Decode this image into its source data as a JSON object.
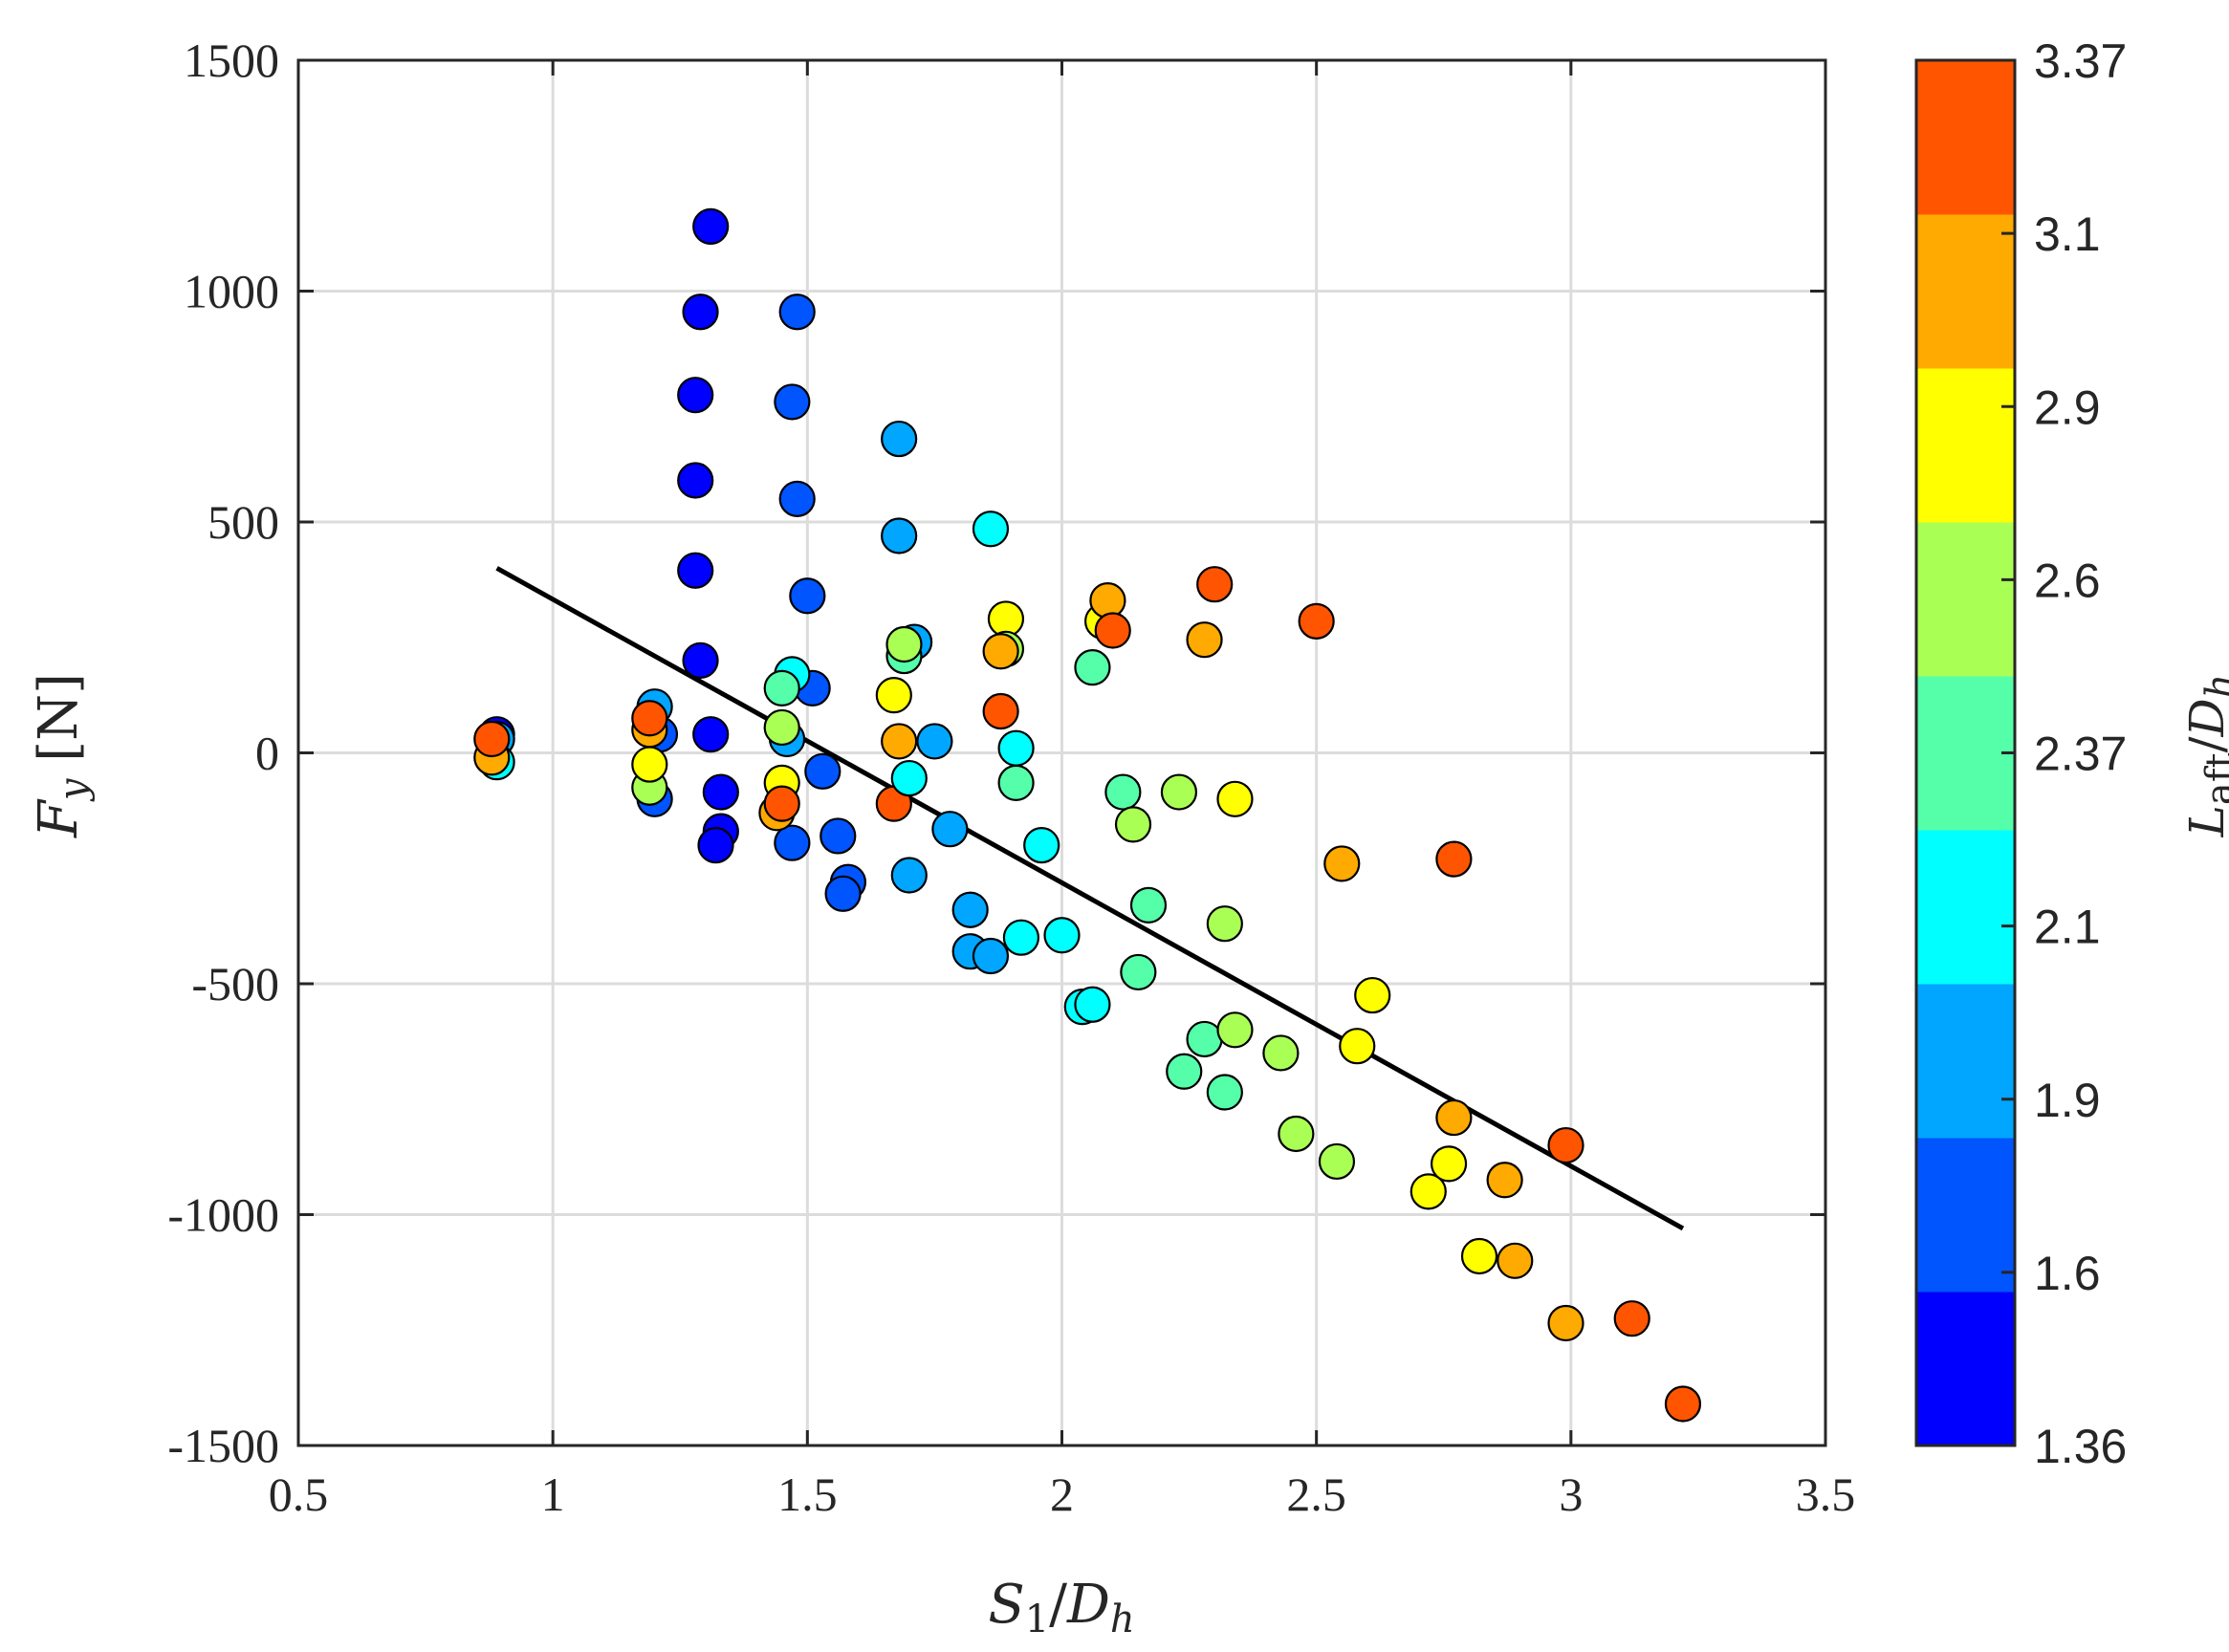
{
  "chart_data": {
    "type": "scatter",
    "title": "",
    "xlabel": "S1/Dh",
    "ylabel": "Fy [N]",
    "xlim": [
      0.5,
      3.5
    ],
    "ylim": [
      -1500,
      1500
    ],
    "x_ticks": [
      0.5,
      1,
      1.5,
      2,
      2.5,
      3,
      3.5
    ],
    "x_tick_labels": [
      "0.5",
      "1",
      "1.5",
      "2",
      "2.5",
      "3",
      "3.5"
    ],
    "y_ticks": [
      -1500,
      -1000,
      -500,
      0,
      500,
      1000,
      1500
    ],
    "y_tick_labels": [
      "-1500",
      "-1000",
      "-500",
      "0",
      "500",
      "1000",
      "1500"
    ],
    "grid": true,
    "colorbar": {
      "label": "Laft/Dh",
      "tick_labels": [
        "1.36",
        "1.6",
        "1.9",
        "2.1",
        "2.37",
        "2.6",
        "2.9",
        "3.1",
        "3.37"
      ],
      "colors": [
        "#0000ff",
        "#0055ff",
        "#00a6ff",
        "#00ffff",
        "#55ffaa",
        "#aaff55",
        "#ffff00",
        "#ffaa00",
        "#ff5500"
      ]
    },
    "fit_line": {
      "x": [
        0.89,
        3.22
      ],
      "y": [
        400,
        -1030
      ]
    },
    "points": [
      {
        "x": 0.89,
        "y": 40,
        "c": 1.36
      },
      {
        "x": 0.89,
        "y": 30,
        "c": 1.9
      },
      {
        "x": 0.89,
        "y": -20,
        "c": 2.1
      },
      {
        "x": 0.88,
        "y": -10,
        "c": 3.1
      },
      {
        "x": 0.88,
        "y": 30,
        "c": 3.37
      },
      {
        "x": 1.31,
        "y": 1140,
        "c": 1.36
      },
      {
        "x": 1.29,
        "y": 955,
        "c": 1.36
      },
      {
        "x": 1.28,
        "y": 775,
        "c": 1.36
      },
      {
        "x": 1.28,
        "y": 590,
        "c": 1.36
      },
      {
        "x": 1.28,
        "y": 395,
        "c": 1.36
      },
      {
        "x": 1.29,
        "y": 200,
        "c": 1.36
      },
      {
        "x": 1.31,
        "y": 40,
        "c": 1.36
      },
      {
        "x": 1.33,
        "y": -85,
        "c": 1.36
      },
      {
        "x": 1.33,
        "y": -170,
        "c": 1.36
      },
      {
        "x": 1.32,
        "y": -200,
        "c": 1.36
      },
      {
        "x": 1.2,
        "y": -100,
        "c": 1.6
      },
      {
        "x": 1.21,
        "y": 40,
        "c": 1.6
      },
      {
        "x": 1.2,
        "y": 100,
        "c": 1.9
      },
      {
        "x": 1.19,
        "y": -75,
        "c": 2.6
      },
      {
        "x": 1.19,
        "y": -25,
        "c": 2.9
      },
      {
        "x": 1.19,
        "y": 50,
        "c": 3.1
      },
      {
        "x": 1.19,
        "y": 75,
        "c": 3.37
      },
      {
        "x": 1.48,
        "y": 955,
        "c": 1.6
      },
      {
        "x": 1.47,
        "y": 760,
        "c": 1.6
      },
      {
        "x": 1.48,
        "y": 550,
        "c": 1.6
      },
      {
        "x": 1.5,
        "y": 340,
        "c": 1.6
      },
      {
        "x": 1.51,
        "y": 140,
        "c": 1.6
      },
      {
        "x": 1.53,
        "y": -40,
        "c": 1.6
      },
      {
        "x": 1.56,
        "y": -180,
        "c": 1.6
      },
      {
        "x": 1.47,
        "y": -195,
        "c": 1.6
      },
      {
        "x": 1.58,
        "y": -280,
        "c": 1.6
      },
      {
        "x": 1.57,
        "y": -305,
        "c": 1.6
      },
      {
        "x": 1.47,
        "y": 170,
        "c": 2.1
      },
      {
        "x": 1.46,
        "y": 30,
        "c": 1.9
      },
      {
        "x": 1.45,
        "y": 140,
        "c": 2.37
      },
      {
        "x": 1.45,
        "y": 55,
        "c": 2.6
      },
      {
        "x": 1.45,
        "y": -65,
        "c": 2.9
      },
      {
        "x": 1.44,
        "y": -130,
        "c": 3.1
      },
      {
        "x": 1.45,
        "y": -110,
        "c": 3.37
      },
      {
        "x": 1.68,
        "y": 680,
        "c": 1.9
      },
      {
        "x": 1.68,
        "y": 470,
        "c": 1.9
      },
      {
        "x": 1.71,
        "y": 240,
        "c": 1.9
      },
      {
        "x": 1.69,
        "y": 210,
        "c": 2.37
      },
      {
        "x": 1.69,
        "y": 235,
        "c": 2.6
      },
      {
        "x": 1.67,
        "y": 125,
        "c": 2.9
      },
      {
        "x": 1.68,
        "y": 25,
        "c": 3.1
      },
      {
        "x": 1.67,
        "y": -110,
        "c": 3.37
      },
      {
        "x": 1.75,
        "y": 25,
        "c": 1.9
      },
      {
        "x": 1.7,
        "y": -55,
        "c": 2.1
      },
      {
        "x": 1.7,
        "y": -265,
        "c": 1.9
      },
      {
        "x": 1.78,
        "y": -165,
        "c": 1.9
      },
      {
        "x": 1.82,
        "y": -340,
        "c": 1.9
      },
      {
        "x": 1.82,
        "y": -430,
        "c": 1.9
      },
      {
        "x": 1.86,
        "y": -440,
        "c": 1.9
      },
      {
        "x": 1.86,
        "y": 485,
        "c": 2.1
      },
      {
        "x": 1.89,
        "y": 290,
        "c": 2.9
      },
      {
        "x": 1.89,
        "y": 225,
        "c": 2.6
      },
      {
        "x": 1.88,
        "y": 220,
        "c": 3.1
      },
      {
        "x": 1.88,
        "y": 90,
        "c": 3.37
      },
      {
        "x": 1.91,
        "y": 10,
        "c": 2.1
      },
      {
        "x": 1.91,
        "y": -65,
        "c": 2.37
      },
      {
        "x": 1.96,
        "y": -200,
        "c": 2.1
      },
      {
        "x": 1.92,
        "y": -400,
        "c": 2.1
      },
      {
        "x": 2.0,
        "y": -395,
        "c": 2.1
      },
      {
        "x": 2.04,
        "y": -550,
        "c": 2.1
      },
      {
        "x": 2.06,
        "y": -545,
        "c": 2.1
      },
      {
        "x": 2.08,
        "y": 285,
        "c": 2.9
      },
      {
        "x": 2.09,
        "y": 330,
        "c": 3.1
      },
      {
        "x": 2.1,
        "y": 265,
        "c": 3.37
      },
      {
        "x": 2.06,
        "y": 185,
        "c": 2.37
      },
      {
        "x": 2.12,
        "y": -85,
        "c": 2.37
      },
      {
        "x": 2.14,
        "y": -155,
        "c": 2.6
      },
      {
        "x": 2.17,
        "y": -330,
        "c": 2.37
      },
      {
        "x": 2.15,
        "y": -475,
        "c": 2.37
      },
      {
        "x": 2.23,
        "y": -85,
        "c": 2.6
      },
      {
        "x": 2.28,
        "y": 245,
        "c": 3.1
      },
      {
        "x": 2.3,
        "y": 365,
        "c": 3.37
      },
      {
        "x": 2.24,
        "y": -690,
        "c": 2.37
      },
      {
        "x": 2.28,
        "y": -620,
        "c": 2.37
      },
      {
        "x": 2.32,
        "y": -370,
        "c": 2.6
      },
      {
        "x": 2.34,
        "y": -100,
        "c": 2.9
      },
      {
        "x": 2.32,
        "y": -735,
        "c": 2.37
      },
      {
        "x": 2.34,
        "y": -600,
        "c": 2.6
      },
      {
        "x": 2.43,
        "y": -650,
        "c": 2.6
      },
      {
        "x": 2.46,
        "y": -825,
        "c": 2.6
      },
      {
        "x": 2.5,
        "y": 285,
        "c": 3.37
      },
      {
        "x": 2.54,
        "y": -885,
        "c": 2.6
      },
      {
        "x": 2.55,
        "y": -240,
        "c": 3.1
      },
      {
        "x": 2.58,
        "y": -635,
        "c": 2.9
      },
      {
        "x": 2.61,
        "y": -525,
        "c": 2.9
      },
      {
        "x": 2.72,
        "y": -950,
        "c": 2.9
      },
      {
        "x": 2.76,
        "y": -890,
        "c": 2.9
      },
      {
        "x": 2.77,
        "y": -790,
        "c": 3.1
      },
      {
        "x": 2.77,
        "y": -230,
        "c": 3.37
      },
      {
        "x": 2.82,
        "y": -1090,
        "c": 2.9
      },
      {
        "x": 2.87,
        "y": -925,
        "c": 3.1
      },
      {
        "x": 2.89,
        "y": -1100,
        "c": 3.1
      },
      {
        "x": 2.99,
        "y": -850,
        "c": 3.37
      },
      {
        "x": 2.99,
        "y": -1235,
        "c": 3.1
      },
      {
        "x": 3.12,
        "y": -1225,
        "c": 3.37
      },
      {
        "x": 3.22,
        "y": -1410,
        "c": 3.37
      }
    ]
  }
}
